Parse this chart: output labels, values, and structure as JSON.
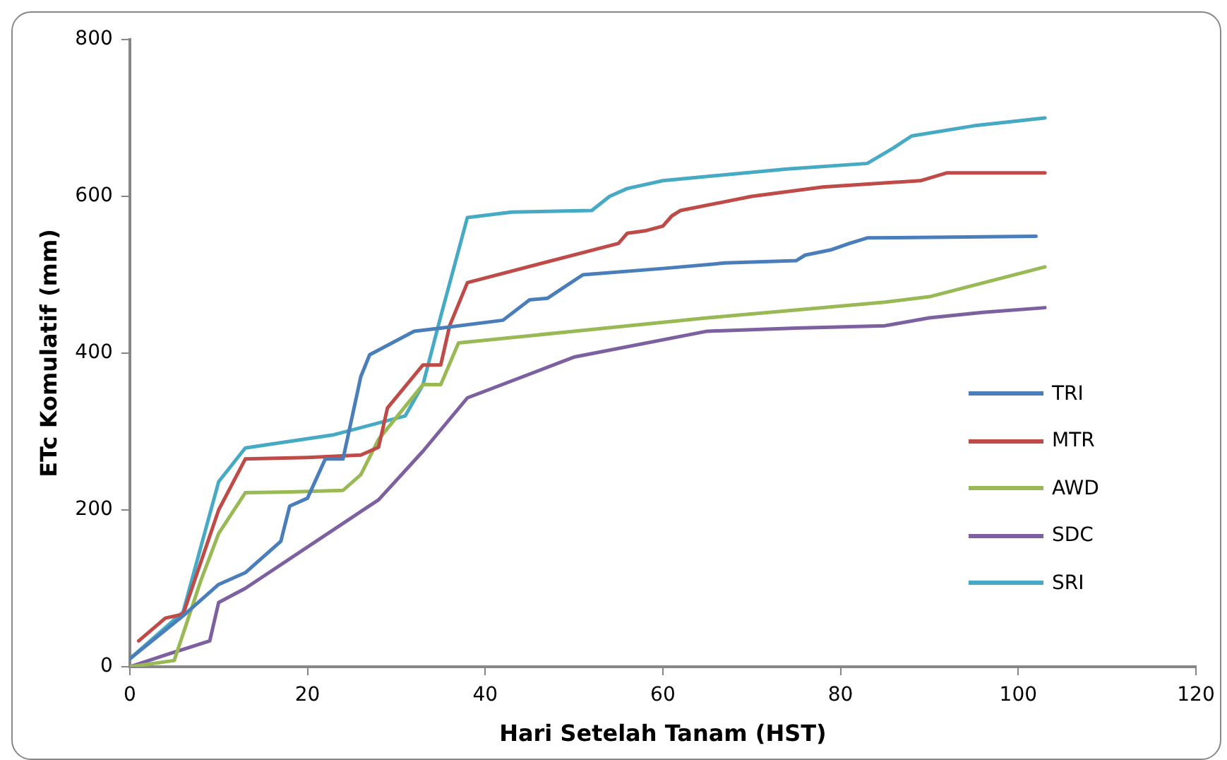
{
  "chart_data": {
    "type": "line",
    "xlabel": "Hari Setelah Tanam (HST)",
    "ylabel": "ETc Komulatif (mm)",
    "xlim": [
      0,
      120
    ],
    "xticks": [
      0,
      20,
      40,
      60,
      80,
      100,
      120
    ],
    "ylim": [
      0,
      800
    ],
    "yticks": [
      0,
      200,
      400,
      600,
      800
    ],
    "grid": false,
    "legend": "right",
    "marker": "none",
    "line_style": "solid",
    "series": [
      {
        "name": "TRI",
        "color": "#4a7ebb",
        "x": [
          0,
          6,
          10,
          13,
          17,
          18,
          20,
          22,
          24,
          26,
          27,
          32,
          35,
          42,
          45,
          47,
          49,
          51,
          60,
          67,
          75,
          76,
          79,
          81,
          83,
          102
        ],
        "values": [
          10,
          65,
          105,
          120,
          160,
          205,
          215,
          265,
          265,
          370,
          398,
          428,
          432,
          442,
          468,
          470,
          485,
          500,
          508,
          515,
          518,
          525,
          532,
          540,
          547,
          549
        ]
      },
      {
        "name": "MTR",
        "color": "#be4b48",
        "x": [
          1,
          4,
          6,
          10,
          13,
          20,
          26,
          28,
          29,
          33,
          35,
          36,
          38,
          55,
          56,
          58,
          60,
          61,
          62,
          70,
          78,
          89,
          92,
          103
        ],
        "values": [
          33,
          62,
          67,
          200,
          265,
          267,
          270,
          280,
          330,
          385,
          385,
          435,
          490,
          540,
          553,
          556,
          562,
          575,
          582,
          600,
          612,
          620,
          630,
          630
        ]
      },
      {
        "name": "AWD",
        "color": "#98b954",
        "x": [
          0,
          5,
          8,
          10,
          13,
          18,
          24,
          26,
          28,
          33,
          35,
          37,
          50,
          65,
          85,
          90,
          103
        ],
        "values": [
          0,
          8,
          110,
          170,
          222,
          223,
          225,
          245,
          290,
          360,
          360,
          413,
          428,
          445,
          465,
          472,
          510
        ]
      },
      {
        "name": "SDC",
        "color": "#7d60a0",
        "x": [
          0,
          4,
          9,
          10,
          13,
          28,
          33,
          38,
          50,
          65,
          75,
          85,
          90,
          96,
          103
        ],
        "values": [
          0,
          15,
          33,
          82,
          100,
          213,
          275,
          343,
          395,
          428,
          432,
          435,
          445,
          452,
          458
        ]
      },
      {
        "name": "SRI",
        "color": "#46aac5",
        "x": [
          0,
          6,
          10,
          13,
          23,
          31,
          33,
          35,
          38,
          43,
          52,
          54,
          56,
          60,
          74,
          83,
          86,
          88,
          95,
          103
        ],
        "values": [
          10,
          70,
          236,
          279,
          296,
          320,
          360,
          447,
          573,
          580,
          582,
          600,
          610,
          620,
          635,
          642,
          662,
          677,
          690,
          700
        ]
      }
    ]
  }
}
